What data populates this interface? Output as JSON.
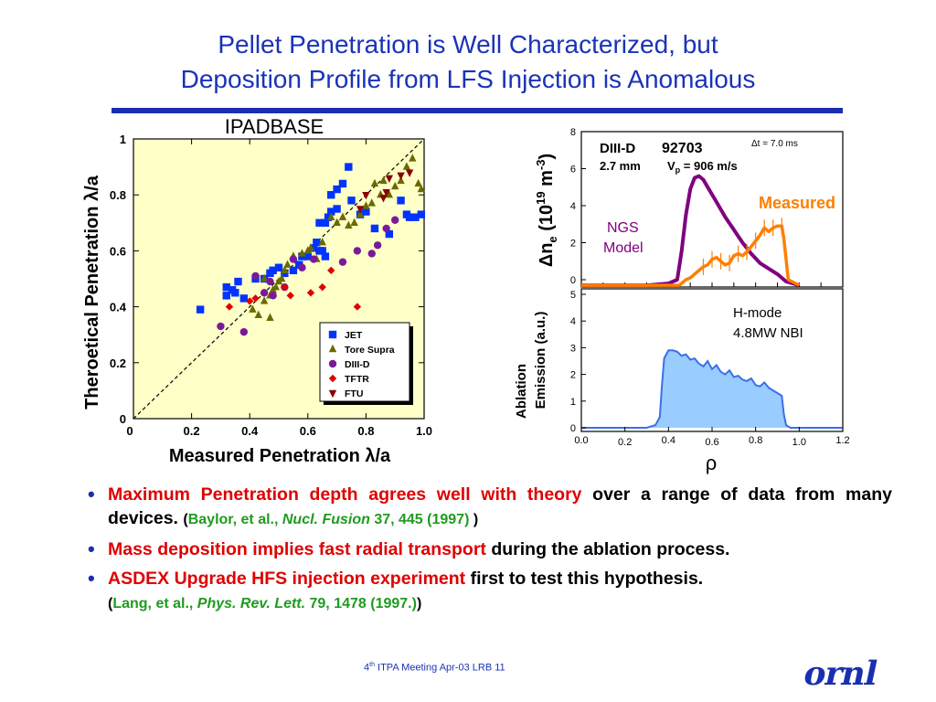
{
  "slide": {
    "title_line1": "Pellet Penetration is Well Characterized, but",
    "title_line2": "Deposition Profile from LFS Injection is Anomalous",
    "accent_color": "#1a2fb0",
    "logo_text": "ornl",
    "footer": {
      "ordinal_num": "4",
      "ordinal_suffix": "th",
      "rest": " ITPA Meeting  Apr-03   LRB      11"
    }
  },
  "bullets": [
    {
      "red": "Maximum Penetration depth agrees well with theory",
      "black": " over a range of data from many devices. ",
      "ref_open": "(",
      "ref_author": "Baylor, et al., ",
      "ref_journal": "Nucl. Fusion",
      "ref_rest": "  37, 445 (1997)",
      "ref_close": " )"
    },
    {
      "red": "Mass deposition implies fast radial transport",
      "black": " during the ablation process."
    },
    {
      "red": "ASDEX Upgrade HFS injection experiment",
      "black": " first to test this hypothesis.",
      "black_end": "",
      "ref_open": "(",
      "ref_author": "Lang, et al., ",
      "ref_journal": "Phys. Rev. Lett.",
      "ref_rest": " 79, 1478 (1997.)",
      "ref_close": ")"
    }
  ],
  "chart_data": [
    {
      "type": "scatter",
      "title": "IPADBASE",
      "xlabel": "Measured Penetration λ/a",
      "ylabel": "Theroetical Penetration λ/a",
      "xlim": [
        0,
        1.0
      ],
      "ylim": [
        0,
        1.0
      ],
      "x_ticks": [
        "0",
        "0.2",
        "0.4",
        "0.6",
        "0.8",
        "1.0"
      ],
      "y_ticks": [
        "0",
        "0.2",
        "0.4",
        "0.6",
        "0.8",
        "1"
      ],
      "reference_line": "y = x",
      "background": "#ffffc8",
      "legend_position": "bottom-right",
      "series": [
        {
          "name": "JET",
          "marker": "square",
          "color": "#0033ff",
          "points": [
            [
              0.23,
              0.39
            ],
            [
              0.32,
              0.47
            ],
            [
              0.32,
              0.44
            ],
            [
              0.34,
              0.46
            ],
            [
              0.35,
              0.45
            ],
            [
              0.36,
              0.49
            ],
            [
              0.38,
              0.43
            ],
            [
              0.42,
              0.5
            ],
            [
              0.45,
              0.5
            ],
            [
              0.47,
              0.52
            ],
            [
              0.48,
              0.53
            ],
            [
              0.5,
              0.54
            ],
            [
              0.52,
              0.52
            ],
            [
              0.55,
              0.53
            ],
            [
              0.57,
              0.55
            ],
            [
              0.58,
              0.58
            ],
            [
              0.6,
              0.58
            ],
            [
              0.62,
              0.61
            ],
            [
              0.63,
              0.63
            ],
            [
              0.64,
              0.6
            ],
            [
              0.65,
              0.6
            ],
            [
              0.66,
              0.58
            ],
            [
              0.64,
              0.7
            ],
            [
              0.66,
              0.7
            ],
            [
              0.67,
              0.72
            ],
            [
              0.68,
              0.74
            ],
            [
              0.7,
              0.75
            ],
            [
              0.68,
              0.8
            ],
            [
              0.7,
              0.82
            ],
            [
              0.72,
              0.84
            ],
            [
              0.74,
              0.9
            ],
            [
              0.75,
              0.78
            ],
            [
              0.78,
              0.73
            ],
            [
              0.8,
              0.74
            ],
            [
              0.83,
              0.68
            ],
            [
              0.88,
              0.66
            ],
            [
              0.92,
              0.78
            ],
            [
              0.94,
              0.73
            ],
            [
              0.95,
              0.72
            ],
            [
              0.97,
              0.72
            ],
            [
              0.99,
              0.73
            ]
          ]
        },
        {
          "name": "Tore Supra",
          "marker": "triangle",
          "color": "#6a6a00",
          "points": [
            [
              0.41,
              0.39
            ],
            [
              0.43,
              0.37
            ],
            [
              0.45,
              0.42
            ],
            [
              0.47,
              0.44
            ],
            [
              0.48,
              0.46
            ],
            [
              0.49,
              0.47
            ],
            [
              0.5,
              0.49
            ],
            [
              0.51,
              0.5
            ],
            [
              0.52,
              0.53
            ],
            [
              0.53,
              0.55
            ],
            [
              0.55,
              0.58
            ],
            [
              0.58,
              0.59
            ],
            [
              0.6,
              0.6
            ],
            [
              0.61,
              0.61
            ],
            [
              0.63,
              0.57
            ],
            [
              0.65,
              0.63
            ],
            [
              0.68,
              0.72
            ],
            [
              0.7,
              0.7
            ],
            [
              0.72,
              0.72
            ],
            [
              0.74,
              0.69
            ],
            [
              0.76,
              0.7
            ],
            [
              0.78,
              0.73
            ],
            [
              0.8,
              0.76
            ],
            [
              0.82,
              0.77
            ],
            [
              0.83,
              0.84
            ],
            [
              0.85,
              0.8
            ],
            [
              0.86,
              0.85
            ],
            [
              0.88,
              0.8
            ],
            [
              0.9,
              0.83
            ],
            [
              0.92,
              0.85
            ],
            [
              0.94,
              0.9
            ],
            [
              0.96,
              0.93
            ],
            [
              0.98,
              0.84
            ],
            [
              0.99,
              0.82
            ],
            [
              0.47,
              0.36
            ],
            [
              0.55,
              0.58
            ],
            [
              0.45,
              0.5
            ]
          ]
        },
        {
          "name": "DIII-D",
          "marker": "circle",
          "color": "#7a1a9a",
          "points": [
            [
              0.3,
              0.33
            ],
            [
              0.38,
              0.31
            ],
            [
              0.42,
              0.51
            ],
            [
              0.45,
              0.45
            ],
            [
              0.47,
              0.49
            ],
            [
              0.48,
              0.44
            ],
            [
              0.52,
              0.47
            ],
            [
              0.55,
              0.57
            ],
            [
              0.58,
              0.54
            ],
            [
              0.62,
              0.57
            ],
            [
              0.72,
              0.56
            ],
            [
              0.77,
              0.6
            ],
            [
              0.82,
              0.59
            ],
            [
              0.84,
              0.62
            ],
            [
              0.87,
              0.68
            ],
            [
              0.9,
              0.71
            ]
          ]
        },
        {
          "name": "TFTR",
          "marker": "diamond",
          "color": "#e00000",
          "points": [
            [
              0.33,
              0.4
            ],
            [
              0.4,
              0.42
            ],
            [
              0.42,
              0.43
            ],
            [
              0.52,
              0.47
            ],
            [
              0.54,
              0.44
            ],
            [
              0.61,
              0.45
            ],
            [
              0.65,
              0.47
            ],
            [
              0.68,
              0.53
            ],
            [
              0.77,
              0.4
            ]
          ]
        },
        {
          "name": "FTU",
          "marker": "triangle-down",
          "color": "#8b0000",
          "points": [
            [
              0.78,
              0.75
            ],
            [
              0.8,
              0.8
            ],
            [
              0.86,
              0.79
            ],
            [
              0.87,
              0.81
            ],
            [
              0.88,
              0.86
            ],
            [
              0.92,
              0.87
            ],
            [
              0.95,
              0.88
            ]
          ]
        }
      ]
    },
    {
      "type": "line",
      "ylabel": "Δn",
      "ylabel_sub": "e",
      "ylabel_rest": " (10",
      "ylabel_sup1": "19",
      "ylabel_mid": " m",
      "ylabel_sup2": "-3",
      "ylabel_end": ")",
      "xlim": [
        0.0,
        1.2
      ],
      "ylim": [
        0,
        8
      ],
      "y_ticks": [
        "0",
        "2",
        "4",
        "6",
        "8"
      ],
      "shot_device": "DIII-D",
      "shot_number": "92703",
      "pellet_size": "2.7 mm",
      "vp_label": "V",
      "vp_sub": "p",
      "vp_value": " = 906 m/s",
      "dt_label": "Δt = 7.0 ms",
      "series": [
        {
          "name": "NGS Model",
          "color": "#800080",
          "x": [
            0.0,
            0.3,
            0.4,
            0.44,
            0.46,
            0.48,
            0.5,
            0.52,
            0.54,
            0.56,
            0.58,
            0.62,
            0.66,
            0.7,
            0.74,
            0.78,
            0.82,
            0.86,
            0.9,
            0.94,
            1.0
          ],
          "y": [
            -0.3,
            -0.3,
            -0.2,
            0.0,
            1.5,
            3.5,
            4.9,
            5.5,
            5.6,
            5.4,
            5.0,
            4.2,
            3.4,
            2.7,
            2.0,
            1.4,
            0.9,
            0.6,
            0.3,
            -0.1,
            -0.3
          ]
        },
        {
          "name": "Measured",
          "color": "#ff7f00",
          "x": [
            0.0,
            0.45,
            0.48,
            0.5,
            0.52,
            0.54,
            0.56,
            0.58,
            0.6,
            0.62,
            0.64,
            0.66,
            0.68,
            0.7,
            0.72,
            0.74,
            0.76,
            0.78,
            0.8,
            0.82,
            0.84,
            0.86,
            0.88,
            0.9,
            0.92,
            0.93,
            0.95,
            1.0
          ],
          "y": [
            -0.3,
            -0.3,
            0.0,
            0.1,
            0.3,
            0.5,
            0.7,
            0.8,
            1.1,
            1.2,
            1.0,
            0.8,
            0.9,
            1.3,
            1.4,
            1.3,
            1.5,
            1.8,
            2.1,
            2.4,
            2.8,
            2.6,
            2.8,
            2.9,
            2.9,
            2.2,
            0.0,
            -0.3
          ]
        }
      ]
    },
    {
      "type": "area",
      "ylabel_line1": "Ablation",
      "ylabel_line2": "Emission (a.u.)",
      "xlabel": "ρ",
      "xlim": [
        0.0,
        1.2
      ],
      "ylim": [
        0,
        5
      ],
      "x_ticks": [
        "0.0",
        "0.2",
        "0.4",
        "0.6",
        "0.8",
        "1.0",
        "1.2"
      ],
      "y_ticks": [
        "0",
        "1",
        "2",
        "3",
        "4",
        "5"
      ],
      "mode_label": "H-mode",
      "heating_label": "4.8MW NBI",
      "series": [
        {
          "name": "Ablation emission",
          "color": "#3b6fe8",
          "fill": "#99ccff",
          "x": [
            0.0,
            0.3,
            0.34,
            0.36,
            0.37,
            0.38,
            0.4,
            0.42,
            0.44,
            0.46,
            0.48,
            0.5,
            0.52,
            0.54,
            0.56,
            0.58,
            0.6,
            0.62,
            0.64,
            0.66,
            0.68,
            0.7,
            0.72,
            0.74,
            0.76,
            0.78,
            0.8,
            0.82,
            0.84,
            0.86,
            0.88,
            0.9,
            0.92,
            0.93,
            0.94,
            0.96,
            1.2
          ],
          "y": [
            0.0,
            0.0,
            0.1,
            0.4,
            1.6,
            2.6,
            2.9,
            2.9,
            2.85,
            2.7,
            2.75,
            2.55,
            2.6,
            2.4,
            2.3,
            2.5,
            2.2,
            2.35,
            2.1,
            2.0,
            2.15,
            1.9,
            1.95,
            1.8,
            1.75,
            1.85,
            1.6,
            1.55,
            1.7,
            1.5,
            1.4,
            1.3,
            1.2,
            0.5,
            0.1,
            0.0,
            0.0
          ]
        }
      ]
    }
  ]
}
